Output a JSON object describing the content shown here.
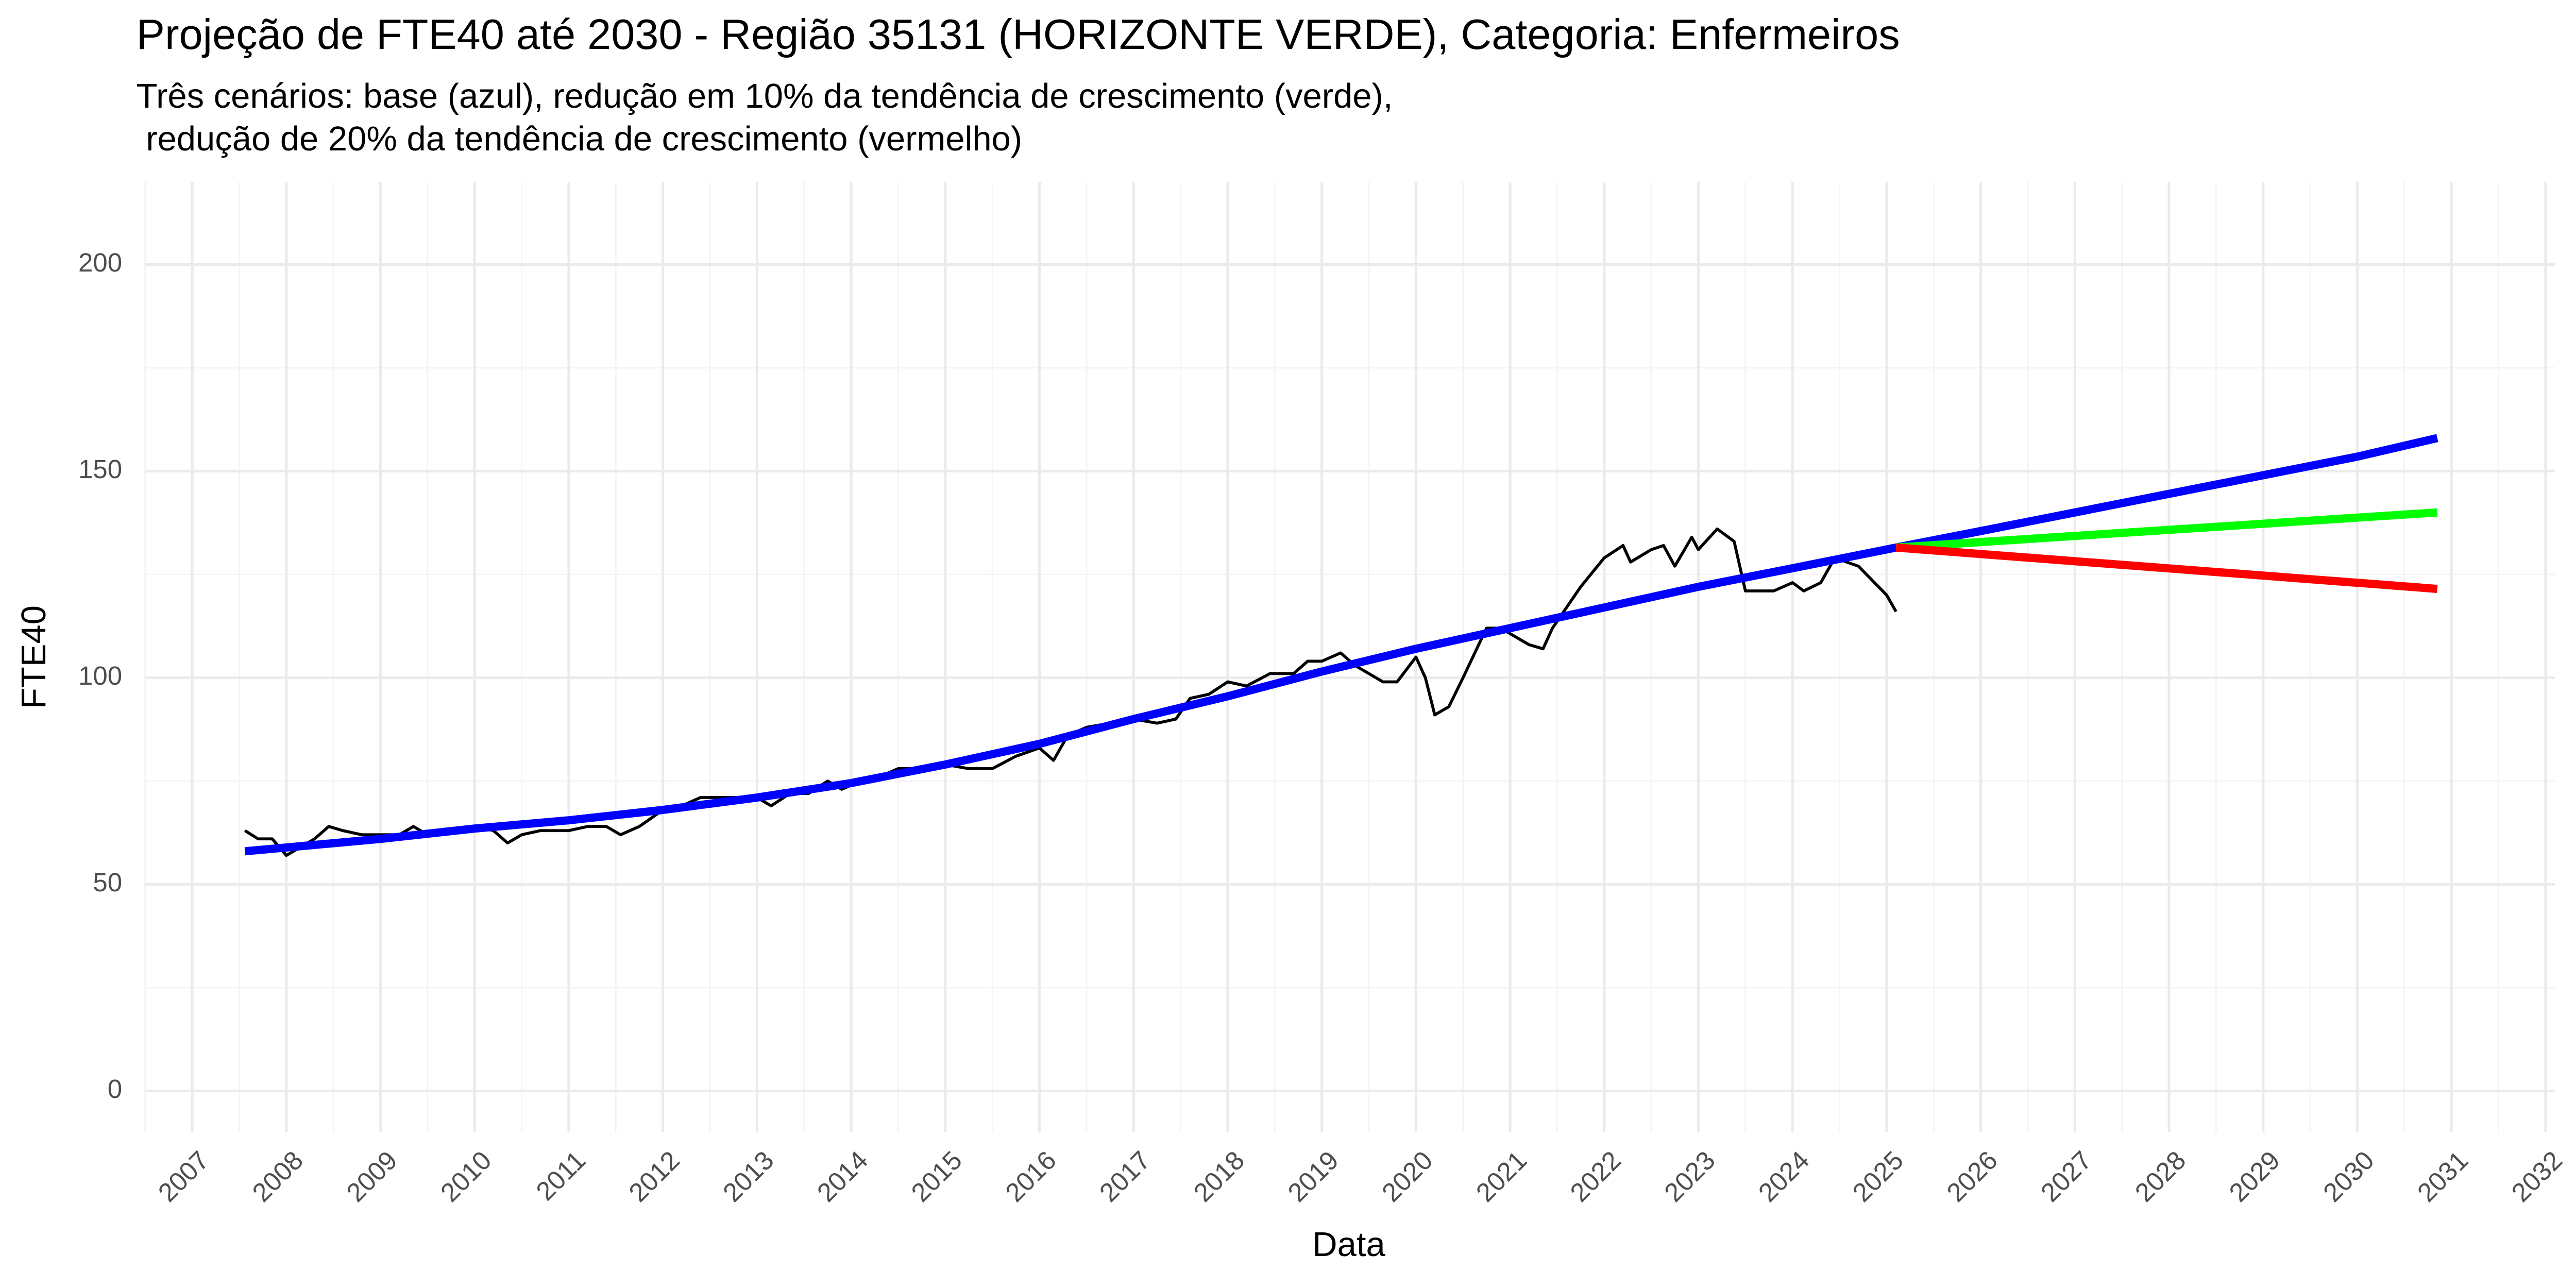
{
  "chart_data": {
    "type": "line",
    "title": "Projeção de FTE40 até 2030 - Região 35131 (HORIZONTE VERDE), Categoria: Enfermeiros",
    "subtitle": [
      "Três cenários: base (azul), redução em 10% da tendência de crescimento (verde),",
      " redução de 20% da tendência de crescimento (vermelho)"
    ],
    "x_label": "Data",
    "y_label": "FTE40",
    "xlim": [
      2006.5,
      2032.1
    ],
    "ylim": [
      -10,
      220
    ],
    "xticks": [
      2007,
      2008,
      2009,
      2010,
      2011,
      2012,
      2013,
      2014,
      2015,
      2016,
      2017,
      2018,
      2019,
      2020,
      2021,
      2022,
      2023,
      2024,
      2025,
      2026,
      2027,
      2028,
      2029,
      2030,
      2031,
      2032
    ],
    "xminorticks": [
      2006.5,
      2007.5,
      2008.5,
      2009.5,
      2010.5,
      2011.5,
      2012.5,
      2013.5,
      2014.5,
      2015.5,
      2016.5,
      2017.5,
      2018.5,
      2019.5,
      2020.5,
      2021.5,
      2022.5,
      2023.5,
      2024.5,
      2025.5,
      2026.5,
      2027.5,
      2028.5,
      2029.5,
      2030.5,
      2031.5
    ],
    "yticks": [
      0,
      50,
      100,
      150,
      200
    ],
    "yminorticks": [
      25,
      75,
      125,
      175
    ],
    "grid": true,
    "series": [
      {
        "color": "#000000",
        "width": 1.8,
        "x": [
          2007.56,
          2007.7,
          2007.85,
          2008.0,
          2008.15,
          2008.3,
          2008.45,
          2008.6,
          2008.8,
          2009.0,
          2009.2,
          2009.35,
          2009.5,
          2009.75,
          2010.0,
          2010.2,
          2010.35,
          2010.5,
          2010.7,
          2011.0,
          2011.2,
          2011.4,
          2011.55,
          2011.75,
          2012.0,
          2012.2,
          2012.4,
          2012.7,
          2013.0,
          2013.15,
          2013.35,
          2013.55,
          2013.75,
          2013.9,
          2014.1,
          2014.3,
          2014.5,
          2014.75,
          2015.0,
          2015.25,
          2015.5,
          2015.75,
          2016.0,
          2016.15,
          2016.3,
          2016.5,
          2016.75,
          2017.0,
          2017.25,
          2017.45,
          2017.6,
          2017.8,
          2018.0,
          2018.2,
          2018.45,
          2018.7,
          2018.85,
          2019.0,
          2019.2,
          2019.35,
          2019.5,
          2019.65,
          2019.8,
          2020.0,
          2020.1,
          2020.2,
          2020.35,
          2020.5,
          2020.75,
          2020.9,
          2021.2,
          2021.35,
          2021.45,
          2021.6,
          2021.75,
          2022.0,
          2022.2,
          2022.28,
          2022.5,
          2022.63,
          2022.75,
          2022.93,
          2023.0,
          2023.2,
          2023.38,
          2023.5,
          2023.8,
          2024.0,
          2024.12,
          2024.3,
          2024.45,
          2024.7,
          2025.0,
          2025.1
        ],
        "values": [
          63,
          61,
          61,
          57,
          59,
          61,
          64,
          63,
          62,
          62,
          62,
          64,
          62,
          63,
          64,
          63,
          60,
          62,
          63,
          63,
          64,
          64,
          62,
          64,
          68,
          69,
          71,
          71,
          71,
          69,
          72,
          72,
          75,
          73,
          75,
          76,
          78,
          78,
          79,
          78,
          78,
          81,
          83,
          80,
          86,
          88,
          89,
          90,
          89,
          90,
          95,
          96,
          99,
          98,
          101,
          101,
          104,
          104,
          106,
          103,
          101,
          99,
          99,
          105,
          100,
          91,
          93,
          100,
          112,
          112,
          108,
          107,
          112,
          117,
          122,
          129,
          132,
          128,
          131,
          132,
          127,
          134,
          131,
          136,
          133,
          121,
          121,
          123,
          121,
          123,
          129,
          127,
          120,
          116
        ]
      },
      {
        "color": "#0000ff",
        "width": 5,
        "x": [
          2007.56,
          2009,
          2010,
          2011,
          2012,
          2013,
          2014,
          2015,
          2016,
          2017,
          2018,
          2019,
          2020,
          2021,
          2022,
          2023,
          2024,
          2025.1,
          2026,
          2027,
          2028,
          2029,
          2030,
          2030.85
        ],
        "values": [
          58,
          61,
          63.5,
          65.5,
          68,
          71,
          74.5,
          79,
          84,
          90,
          95.5,
          101.5,
          107,
          112,
          117,
          122,
          126.5,
          131.5,
          135.5,
          140,
          144.5,
          149,
          153.5,
          158
        ]
      },
      {
        "color": "#00ff00",
        "width": 5,
        "x": [
          2025.1,
          2030.85
        ],
        "values": [
          131.5,
          140
        ]
      },
      {
        "color": "#ff0000",
        "width": 5,
        "x": [
          2025.1,
          2030.85
        ],
        "values": [
          131.5,
          121.5
        ]
      }
    ]
  }
}
